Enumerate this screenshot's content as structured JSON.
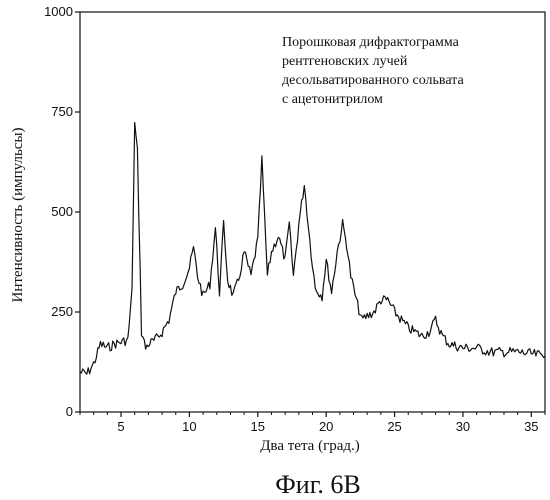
{
  "chart_data": {
    "type": "line",
    "title": "",
    "xlabel": "Два тета (град.)",
    "ylabel": "Интенсивность (импульсы)",
    "xlim": [
      2,
      36
    ],
    "ylim": [
      0,
      1000
    ],
    "xticks": [
      5,
      10,
      15,
      20,
      25,
      30,
      35
    ],
    "yticks": [
      0,
      250,
      500,
      750,
      1000
    ],
    "grid": false,
    "legend": {
      "placement": "top-right",
      "lines": [
        "Порошковая дифрактограмма",
        "рентгеновских лучей",
        "десольватированного сольвата",
        "с ацетонитрилом"
      ]
    },
    "series": [
      {
        "name": "",
        "color": "#111111",
        "x": [
          2.0,
          2.5,
          3.0,
          3.5,
          4.0,
          4.5,
          5.0,
          5.5,
          5.8,
          6.0,
          6.2,
          6.5,
          6.8,
          7.0,
          7.5,
          8.0,
          8.5,
          9.0,
          9.5,
          10.0,
          10.3,
          10.6,
          11.0,
          11.5,
          11.9,
          12.2,
          12.5,
          12.8,
          13.2,
          13.6,
          14.0,
          14.5,
          15.0,
          15.3,
          15.7,
          16.0,
          16.5,
          17.0,
          17.3,
          17.6,
          18.0,
          18.4,
          18.8,
          19.2,
          19.7,
          20.0,
          20.4,
          20.8,
          21.2,
          21.5,
          21.8,
          22.2,
          22.6,
          23.0,
          23.5,
          24.0,
          24.5,
          25.0,
          25.5,
          26.0,
          26.5,
          27.0,
          27.5,
          28.0,
          28.5,
          29.0,
          29.5,
          30.0,
          31.0,
          32.0,
          33.0,
          34.0,
          35.0,
          36.0
        ],
        "y": [
          100,
          95,
          120,
          170,
          160,
          170,
          175,
          180,
          300,
          720,
          650,
          200,
          160,
          170,
          180,
          200,
          230,
          300,
          320,
          360,
          410,
          340,
          290,
          320,
          460,
          300,
          470,
          330,
          290,
          330,
          400,
          340,
          430,
          630,
          340,
          400,
          440,
          380,
          470,
          340,
          470,
          570,
          430,
          310,
          290,
          380,
          300,
          400,
          470,
          420,
          340,
          280,
          230,
          240,
          250,
          280,
          280,
          250,
          230,
          210,
          200,
          190,
          200,
          230,
          190,
          170,
          165,
          160,
          160,
          150,
          150,
          150,
          145,
          140
        ]
      }
    ]
  },
  "caption": "Фиг. 6В"
}
